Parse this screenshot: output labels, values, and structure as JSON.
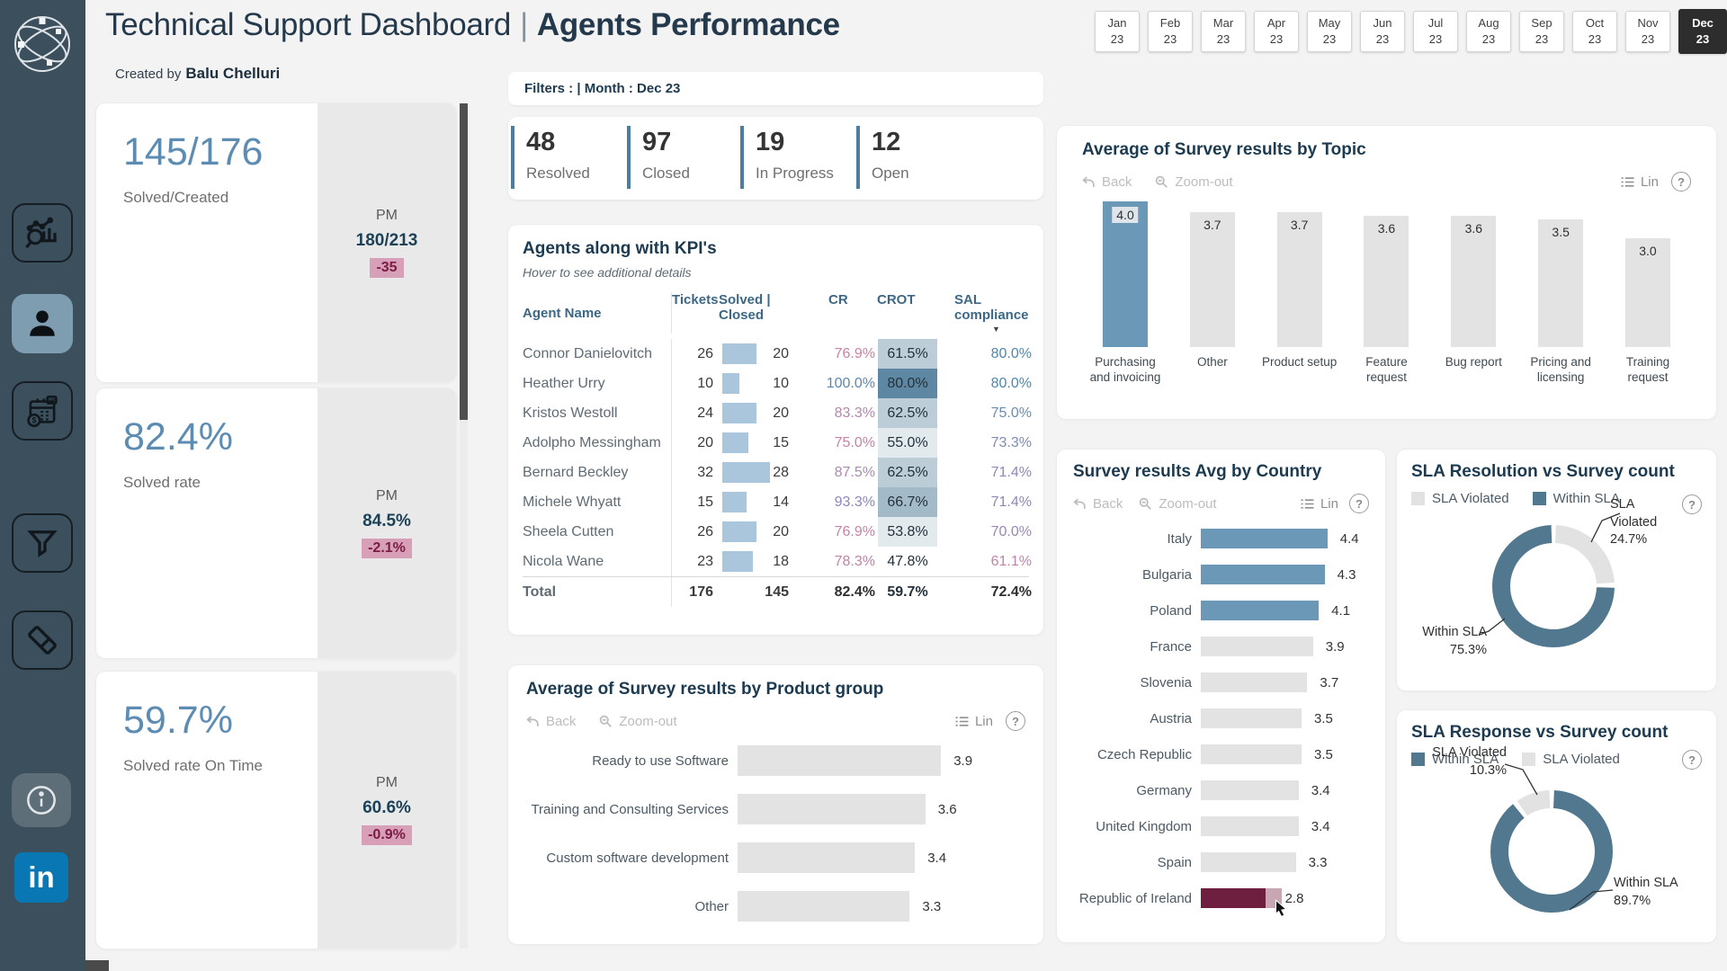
{
  "palette": {
    "sidebar_bg": "#3b4f5d",
    "sidebar_active_bg": "#7f9db1",
    "page_bg": "#f3f3f3",
    "navy": "#1c3a50",
    "accent_blue": "#6b98b6",
    "donut_blue": "#52788f",
    "bar_gray": "#e3e3e3",
    "maroon": "#6e1f3f",
    "pink_bg": "#d7a0b8",
    "pink_text": "#7c1b45",
    "kpi_blue": "#5d8cb3",
    "table_bar": "#a9c6dd"
  },
  "header": {
    "title_main": "Technical Support Dashboard",
    "title_sep": "|",
    "title_sub": "Agents Performance",
    "created_by_prefix": "Created by",
    "created_by_name": "Balu Chelluri"
  },
  "misc": {
    "linkedin": "in",
    "sort_arrow": "▼"
  },
  "month_tabs": [
    {
      "month": "Jan",
      "year": "23",
      "selected": false
    },
    {
      "month": "Feb",
      "year": "23",
      "selected": false
    },
    {
      "month": "Mar",
      "year": "23",
      "selected": false
    },
    {
      "month": "Apr",
      "year": "23",
      "selected": false
    },
    {
      "month": "May",
      "year": "23",
      "selected": false
    },
    {
      "month": "Jun",
      "year": "23",
      "selected": false
    },
    {
      "month": "Jul",
      "year": "23",
      "selected": false
    },
    {
      "month": "Aug",
      "year": "23",
      "selected": false
    },
    {
      "month": "Sep",
      "year": "23",
      "selected": false
    },
    {
      "month": "Oct",
      "year": "23",
      "selected": false
    },
    {
      "month": "Nov",
      "year": "23",
      "selected": false
    },
    {
      "month": "Dec",
      "year": "23",
      "selected": true
    }
  ],
  "filters_bar": {
    "text": "Filters : | Month : Dec 23"
  },
  "kpi_cards": [
    {
      "value": "145/176",
      "label": "Solved/Created",
      "pm_label": "PM",
      "pm_value": "180/213",
      "delta": "-35"
    },
    {
      "value": "82.4%",
      "label": "Solved rate",
      "pm_label": "PM",
      "pm_value": "84.5%",
      "delta": "-2.1%"
    },
    {
      "value": "59.7%",
      "label": "Solved rate On Time",
      "pm_label": "PM",
      "pm_value": "60.6%",
      "delta": "-0.9%"
    }
  ],
  "kpi_strip": [
    {
      "value": "48",
      "label": "Resolved"
    },
    {
      "value": "97",
      "label": "Closed"
    },
    {
      "value": "19",
      "label": "In Progress"
    },
    {
      "value": "12",
      "label": "Open"
    }
  ],
  "agents_table": {
    "title": "Agents along with KPI's",
    "subtitle": "Hover to see additional details",
    "columns": [
      "Agent Name",
      "Tickets",
      "Solved | Closed",
      "CR",
      "CROT",
      "SAL compliance"
    ],
    "rows": [
      {
        "name": "Connor Danielovitch",
        "tickets": 26,
        "solved": 20,
        "cr": "76.9%",
        "cr_color": "#c981a5",
        "crot": "61.5%",
        "crot_bg": "#bccdd8",
        "sal": "80.0%",
        "sal_color": "#4e87ae"
      },
      {
        "name": "Heather Urry",
        "tickets": 10,
        "solved": 10,
        "cr": "100.0%",
        "cr_color": "#5e87ad",
        "crot": "80.0%",
        "crot_bg": "#5d87a3",
        "sal": "80.0%",
        "sal_color": "#4e87ae"
      },
      {
        "name": "Kristos Westoll",
        "tickets": 24,
        "solved": 20,
        "cr": "83.3%",
        "cr_color": "#b487ad",
        "crot": "62.5%",
        "crot_bg": "#bccdd8",
        "sal": "75.0%",
        "sal_color": "#6a8cb4"
      },
      {
        "name": "Adolpho Messingham",
        "tickets": 20,
        "solved": 15,
        "cr": "75.0%",
        "cr_color": "#c981a5",
        "crot": "55.0%",
        "crot_bg": "#e2eaee",
        "sal": "73.3%",
        "sal_color": "#7d8bb8"
      },
      {
        "name": "Bernard Beckley",
        "tickets": 32,
        "solved": 28,
        "cr": "87.5%",
        "cr_color": "#a98ab3",
        "crot": "62.5%",
        "crot_bg": "#bccdd8",
        "sal": "71.4%",
        "sal_color": "#8d89b9"
      },
      {
        "name": "Michele Whyatt",
        "tickets": 15,
        "solved": 14,
        "cr": "93.3%",
        "cr_color": "#8a88bd",
        "crot": "66.7%",
        "crot_bg": "#a3bac8",
        "sal": "71.4%",
        "sal_color": "#8d89b9"
      },
      {
        "name": "Sheela Cutten",
        "tickets": 26,
        "solved": 20,
        "cr": "76.9%",
        "cr_color": "#c981a5",
        "crot": "53.8%",
        "crot_bg": "#e2eaee",
        "sal": "70.0%",
        "sal_color": "#9c86b6"
      },
      {
        "name": "Nicola Wane",
        "tickets": 23,
        "solved": 18,
        "cr": "78.3%",
        "cr_color": "#c283a8",
        "crot": "47.8%",
        "crot_bg": "",
        "sal": "61.1%",
        "sal_color": "#c383a9"
      }
    ],
    "total": {
      "name": "Total",
      "tickets": "176",
      "solved": "145",
      "cr": "82.4%",
      "crot": "59.7%",
      "sal": "72.4%"
    }
  },
  "chart_data": [
    {
      "id": "topic",
      "type": "bar",
      "title": "Average of Survey results by Topic",
      "categories": [
        "Purchasing and invoicing",
        "Other",
        "Product setup",
        "Feature request",
        "Bug report",
        "Pricing and licensing",
        "Training request"
      ],
      "values": [
        4.0,
        3.7,
        3.7,
        3.6,
        3.6,
        3.5,
        3.0
      ],
      "highlight_index": 0,
      "highlight_color": "#6b98b6",
      "bar_color": "#e3e3e3",
      "ylim": [
        0,
        4.1
      ],
      "grid": false,
      "toolbar": {
        "back": "Back",
        "zoom_out": "Zoom-out",
        "lin": "Lin",
        "help": "?"
      }
    },
    {
      "id": "product",
      "type": "bar-horizontal",
      "title": "Average of Survey results by Product group",
      "categories": [
        "Ready to use Software",
        "Training and Consulting Services",
        "Custom software development",
        "Other"
      ],
      "values": [
        3.9,
        3.6,
        3.4,
        3.3
      ],
      "bar_colors": [
        "#e3e3e3",
        "#e3e3e3",
        "#e3e3e3",
        "#e3e3e3"
      ],
      "xlim": [
        0,
        4.2
      ],
      "grid": false,
      "toolbar": {
        "back": "Back",
        "zoom_out": "Zoom-out",
        "lin": "Lin",
        "help": "?"
      }
    },
    {
      "id": "country",
      "type": "bar-horizontal",
      "title": "Survey results Avg by Country",
      "categories": [
        "Italy",
        "Bulgaria",
        "Poland",
        "France",
        "Slovenia",
        "Austria",
        "Czech Republic",
        "Germany",
        "United Kingdom",
        "Spain",
        "Republic of Ireland"
      ],
      "values": [
        4.4,
        4.3,
        4.1,
        3.9,
        3.7,
        3.5,
        3.5,
        3.4,
        3.4,
        3.3,
        2.8
      ],
      "bar_colors": [
        "#6b98b6",
        "#6b98b6",
        "#6b98b6",
        "#e3e3e3",
        "#e3e3e3",
        "#e3e3e3",
        "#e3e3e3",
        "#e3e3e3",
        "#e3e3e3",
        "#e3e3e3",
        "#6e1f3f"
      ],
      "last_bar": {
        "tail_color": "#c9a6b4",
        "cursor": true
      },
      "xlim": [
        0,
        4.6
      ],
      "grid": false,
      "toolbar": {
        "back": "Back",
        "zoom_out": "Zoom-out",
        "lin": "Lin",
        "help": "?"
      }
    },
    {
      "id": "sla_resolution",
      "type": "pie",
      "title": "SLA Resolution vs Survey count",
      "legend": [
        {
          "label": "SLA Violated",
          "color": "#e2e2e2"
        },
        {
          "label": "Within SLA",
          "color": "#52788f"
        }
      ],
      "slices": [
        {
          "label": "SLA Violated",
          "value": 24.7,
          "color": "#e2e2e2"
        },
        {
          "label": "Within SLA",
          "value": 75.3,
          "color": "#52788f"
        }
      ],
      "callouts": [
        {
          "lines": [
            "SLA",
            "Violated",
            "24.7%"
          ]
        },
        {
          "lines": [
            "Within SLA",
            "75.3%"
          ]
        }
      ],
      "toolbar": {
        "help": "?"
      }
    },
    {
      "id": "sla_response",
      "type": "pie",
      "title": "SLA Response vs Survey count",
      "legend": [
        {
          "label": "Within SLA",
          "color": "#52788f"
        },
        {
          "label": "SLA Violated",
          "color": "#e2e2e2"
        }
      ],
      "slices": [
        {
          "label": "Within SLA",
          "value": 89.7,
          "color": "#52788f"
        },
        {
          "label": "SLA Violated",
          "value": 10.3,
          "color": "#e2e2e2"
        }
      ],
      "callouts": [
        {
          "lines": [
            "SLA Violated",
            "10.3%"
          ]
        },
        {
          "lines": [
            "Within SLA",
            "89.7%"
          ]
        }
      ],
      "toolbar": {
        "help": "?"
      }
    }
  ]
}
